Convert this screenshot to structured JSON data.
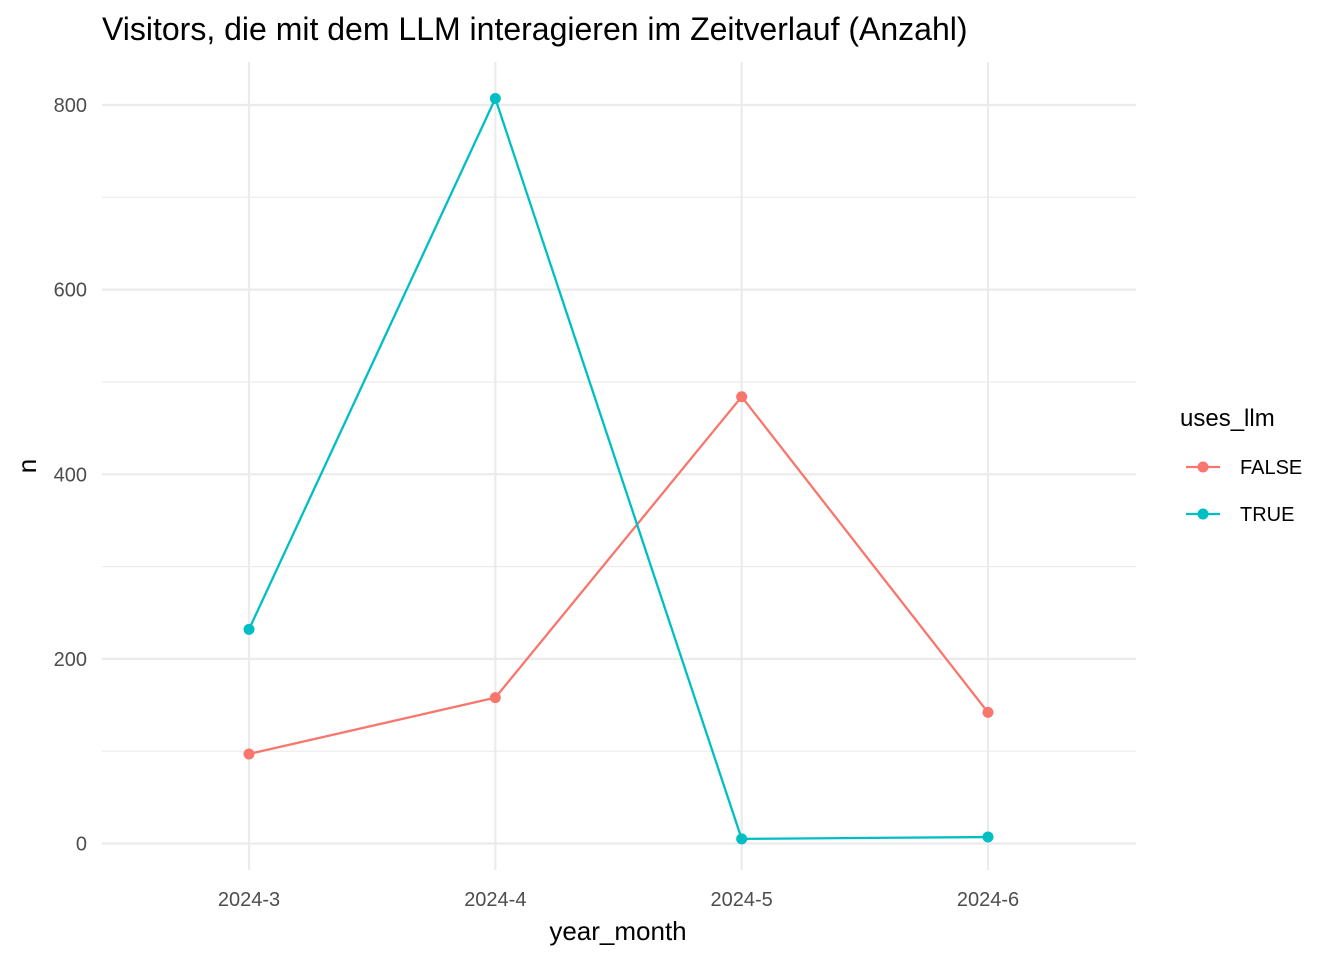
{
  "chart_data": {
    "type": "line",
    "title": "Visitors, die mit dem LLM interagieren im Zeitverlauf (Anzahl)",
    "xlabel": "year_month",
    "ylabel": "n",
    "categories": [
      "2024-3",
      "2024-4",
      "2024-5",
      "2024-6"
    ],
    "ylim": [
      -30,
      850
    ],
    "yticks": [
      0,
      200,
      400,
      600,
      800
    ],
    "y_tick_labels": [
      "0",
      "200",
      "400",
      "600",
      "800"
    ],
    "grid": true,
    "markers": true,
    "legend": {
      "title": "uses_llm",
      "position": "right"
    },
    "series": [
      {
        "name": "FALSE",
        "color": "#F8766D",
        "values": [
          97,
          158,
          484,
          142
        ]
      },
      {
        "name": "TRUE",
        "color": "#00BFC4",
        "values": [
          232,
          807,
          5,
          7
        ]
      }
    ]
  }
}
